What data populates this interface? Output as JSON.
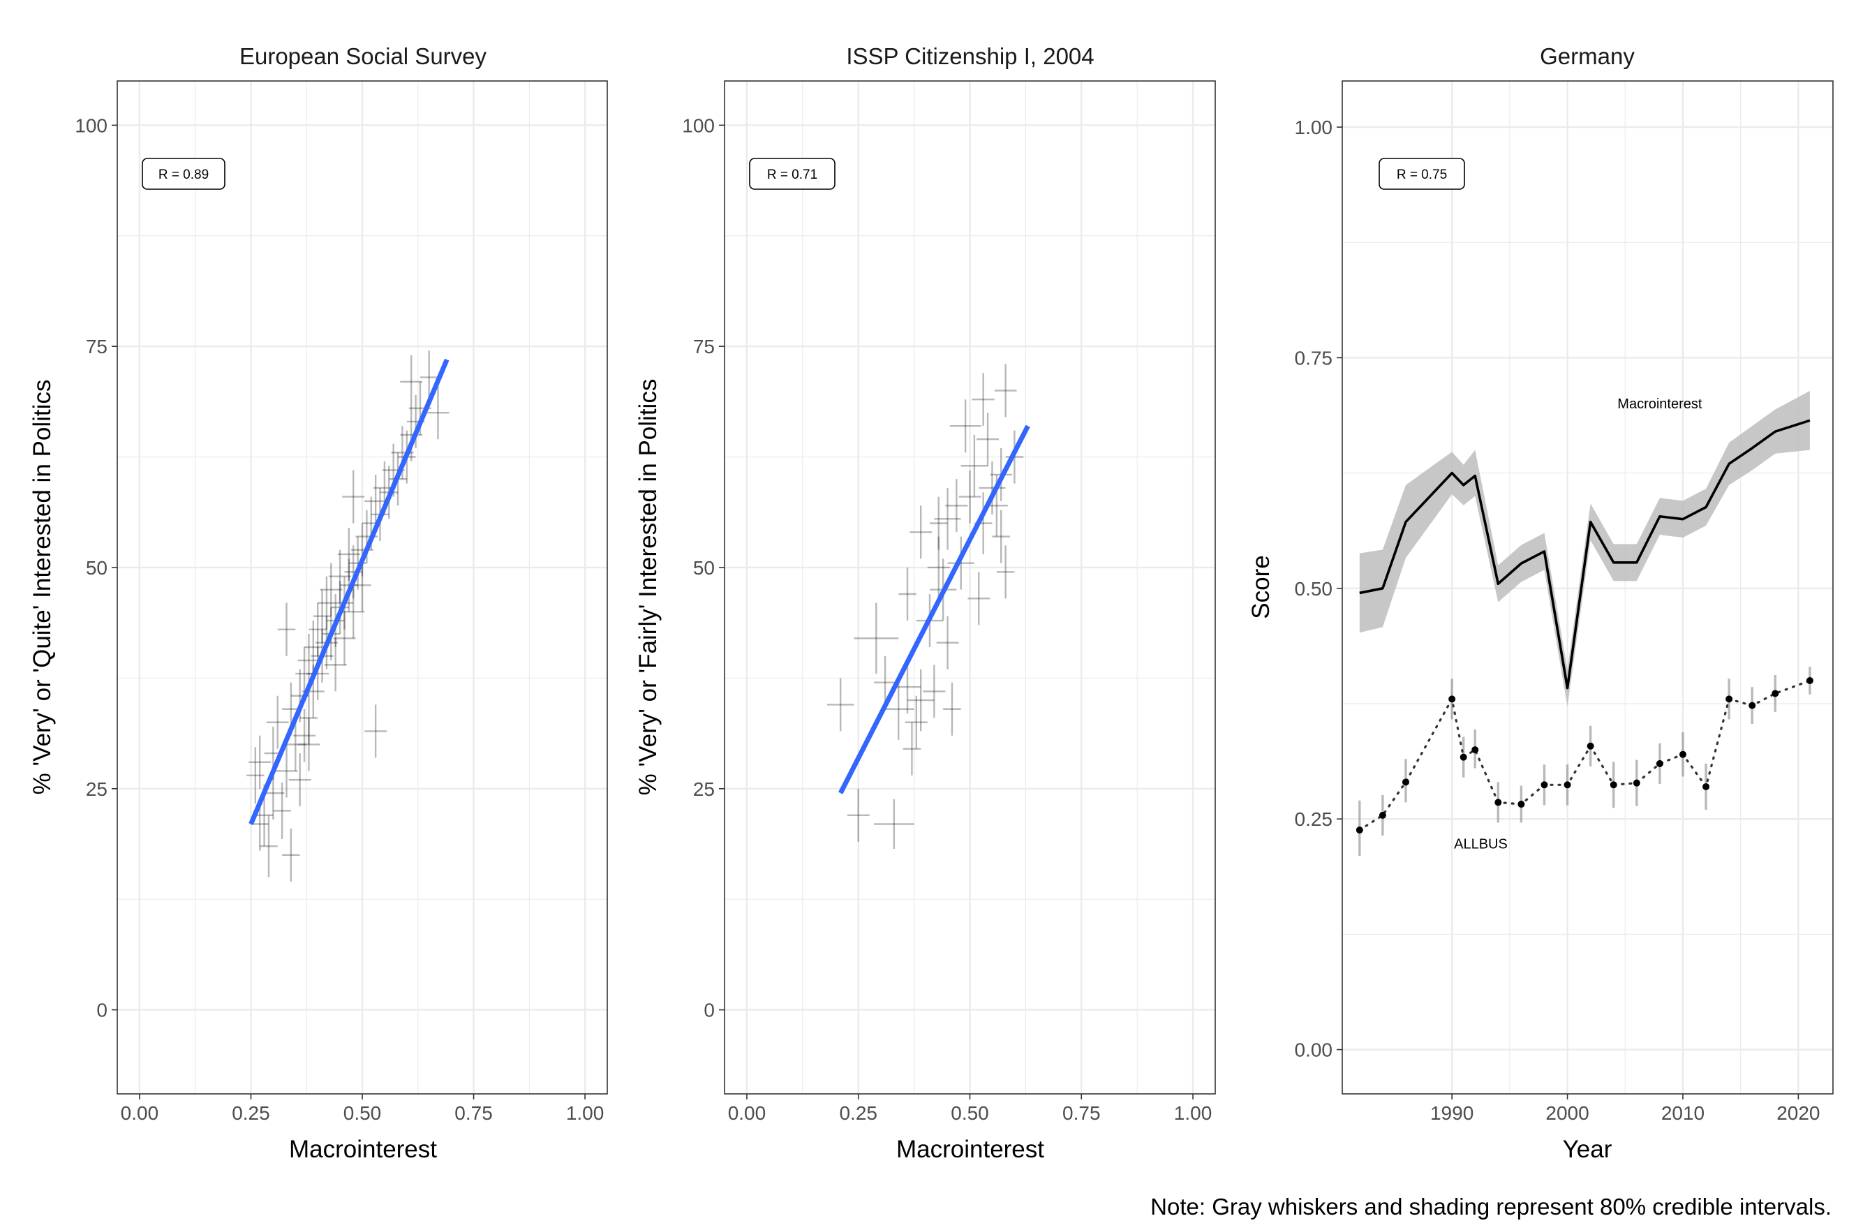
{
  "note": "Note: Gray whiskers and shading represent 80% credible intervals.",
  "colors": {
    "fit_line": "#3366ff",
    "cross": "#000000",
    "band": "#bdbdbd",
    "grid": "#ebebeb",
    "frame": "#333333"
  },
  "chart_data": [
    {
      "type": "scatter",
      "title": "European Social Survey",
      "xlabel": "Macrointerest",
      "ylabel": "% 'Very' or 'Quite' Interested in Politics",
      "xlim": [
        -0.05,
        1.05
      ],
      "ylim": [
        -9.5,
        105
      ],
      "xticks": [
        0.0,
        0.25,
        0.5,
        0.75,
        1.0
      ],
      "xtick_labels": [
        "0.00",
        "0.25",
        "0.50",
        "0.75",
        "1.00"
      ],
      "yticks": [
        0,
        25,
        50,
        75,
        100
      ],
      "ytick_labels": [
        "0",
        "25",
        "50",
        "75",
        "100"
      ],
      "grid": true,
      "r_label": "R = 0.89",
      "fit_line": {
        "x": [
          0.25,
          0.69
        ],
        "y": [
          21,
          73.5
        ]
      },
      "points": [
        [
          0.26,
          26.5,
          0.02,
          3.2
        ],
        [
          0.27,
          28.0,
          0.025,
          3.0
        ],
        [
          0.28,
          22.0,
          0.02,
          3.5
        ],
        [
          0.29,
          18.5,
          0.02,
          3.5
        ],
        [
          0.3,
          24.5,
          0.025,
          3.0
        ],
        [
          0.3,
          29.0,
          0.02,
          3.0
        ],
        [
          0.31,
          32.5,
          0.025,
          3.0
        ],
        [
          0.32,
          22.5,
          0.02,
          3.2
        ],
        [
          0.33,
          27.0,
          0.025,
          3.0
        ],
        [
          0.34,
          17.5,
          0.02,
          3.0
        ],
        [
          0.34,
          34.0,
          0.02,
          3.0
        ],
        [
          0.35,
          30.0,
          0.025,
          3.0
        ],
        [
          0.36,
          35.5,
          0.02,
          3.0
        ],
        [
          0.36,
          26.0,
          0.025,
          3.0
        ],
        [
          0.37,
          38.0,
          0.02,
          3.0
        ],
        [
          0.37,
          31.0,
          0.025,
          3.0
        ],
        [
          0.38,
          33.0,
          0.02,
          3.0
        ],
        [
          0.38,
          39.5,
          0.025,
          3.0
        ],
        [
          0.39,
          41.0,
          0.02,
          3.0
        ],
        [
          0.39,
          36.0,
          0.025,
          3.0
        ],
        [
          0.4,
          43.0,
          0.02,
          3.0
        ],
        [
          0.4,
          38.0,
          0.025,
          3.0
        ],
        [
          0.41,
          44.5,
          0.02,
          3.0
        ],
        [
          0.41,
          40.0,
          0.025,
          3.0
        ],
        [
          0.42,
          46.0,
          0.02,
          3.0
        ],
        [
          0.42,
          41.5,
          0.025,
          3.0
        ],
        [
          0.43,
          42.5,
          0.02,
          3.0
        ],
        [
          0.43,
          47.5,
          0.025,
          3.0
        ],
        [
          0.44,
          44.0,
          0.02,
          3.0
        ],
        [
          0.44,
          39.0,
          0.025,
          3.0
        ],
        [
          0.45,
          45.5,
          0.02,
          3.0
        ],
        [
          0.45,
          49.0,
          0.025,
          3.0
        ],
        [
          0.46,
          46.0,
          0.02,
          3.0
        ],
        [
          0.46,
          42.0,
          0.025,
          3.0
        ],
        [
          0.47,
          48.0,
          0.02,
          3.0
        ],
        [
          0.47,
          51.5,
          0.025,
          3.0
        ],
        [
          0.48,
          49.5,
          0.02,
          3.0
        ],
        [
          0.48,
          45.0,
          0.025,
          3.0
        ],
        [
          0.49,
          50.5,
          0.02,
          3.0
        ],
        [
          0.5,
          52.0,
          0.025,
          3.0
        ],
        [
          0.5,
          48.0,
          0.02,
          3.0
        ],
        [
          0.51,
          53.5,
          0.025,
          3.0
        ],
        [
          0.52,
          55.0,
          0.02,
          3.0
        ],
        [
          0.53,
          57.5,
          0.025,
          3.0
        ],
        [
          0.54,
          56.0,
          0.02,
          3.0
        ],
        [
          0.55,
          59.0,
          0.025,
          3.0
        ],
        [
          0.56,
          58.5,
          0.02,
          3.0
        ],
        [
          0.57,
          61.0,
          0.025,
          3.0
        ],
        [
          0.58,
          60.0,
          0.02,
          3.0
        ],
        [
          0.59,
          63.0,
          0.025,
          3.0
        ],
        [
          0.6,
          62.5,
          0.02,
          3.0
        ],
        [
          0.61,
          65.0,
          0.025,
          3.0
        ],
        [
          0.62,
          66.5,
          0.02,
          3.0
        ],
        [
          0.63,
          68.0,
          0.025,
          3.0
        ],
        [
          0.65,
          71.5,
          0.02,
          3.0
        ],
        [
          0.67,
          67.5,
          0.025,
          3.0
        ],
        [
          0.53,
          31.5,
          0.025,
          3.0
        ],
        [
          0.33,
          43.0,
          0.02,
          3.0
        ],
        [
          0.48,
          58.0,
          0.025,
          3.0
        ],
        [
          0.61,
          71.0,
          0.025,
          3.0
        ],
        [
          0.27,
          21.0,
          0.02,
          3.0
        ],
        [
          0.38,
          30.0,
          0.025,
          3.0
        ]
      ]
    },
    {
      "type": "scatter",
      "title": "ISSP Citizenship I, 2004",
      "xlabel": "Macrointerest",
      "ylabel": "% 'Very' or 'Fairly' Interested in Politics",
      "xlim": [
        -0.05,
        1.05
      ],
      "ylim": [
        -9.5,
        105
      ],
      "xticks": [
        0.0,
        0.25,
        0.5,
        0.75,
        1.0
      ],
      "xtick_labels": [
        "0.00",
        "0.25",
        "0.50",
        "0.75",
        "1.00"
      ],
      "yticks": [
        0,
        25,
        50,
        75,
        100
      ],
      "ytick_labels": [
        "0",
        "25",
        "50",
        "75",
        "100"
      ],
      "grid": true,
      "r_label": "R = 0.71",
      "fit_line": {
        "x": [
          0.21,
          0.63
        ],
        "y": [
          24.5,
          66
        ]
      },
      "points": [
        [
          0.21,
          34.5,
          0.03,
          3.0
        ],
        [
          0.25,
          22.0,
          0.025,
          3.0
        ],
        [
          0.29,
          42.0,
          0.05,
          4.0
        ],
        [
          0.33,
          21.0,
          0.045,
          2.8
        ],
        [
          0.31,
          37.0,
          0.025,
          3.0
        ],
        [
          0.34,
          34.0,
          0.035,
          3.5
        ],
        [
          0.36,
          36.5,
          0.03,
          3.0
        ],
        [
          0.37,
          29.5,
          0.02,
          3.0
        ],
        [
          0.38,
          32.5,
          0.025,
          3.0
        ],
        [
          0.39,
          35.0,
          0.03,
          3.5
        ],
        [
          0.39,
          54.0,
          0.025,
          3.0
        ],
        [
          0.41,
          44.0,
          0.03,
          3.0
        ],
        [
          0.42,
          36.0,
          0.025,
          3.0
        ],
        [
          0.43,
          50.0,
          0.025,
          3.5
        ],
        [
          0.44,
          47.5,
          0.03,
          3.5
        ],
        [
          0.45,
          41.5,
          0.025,
          3.0
        ],
        [
          0.45,
          55.5,
          0.03,
          3.5
        ],
        [
          0.46,
          34.0,
          0.02,
          3.0
        ],
        [
          0.47,
          57.0,
          0.025,
          3.0
        ],
        [
          0.48,
          50.5,
          0.03,
          3.0
        ],
        [
          0.49,
          66.0,
          0.035,
          3.0
        ],
        [
          0.5,
          58.0,
          0.025,
          3.0
        ],
        [
          0.51,
          61.5,
          0.03,
          3.5
        ],
        [
          0.52,
          46.5,
          0.025,
          3.0
        ],
        [
          0.53,
          55.0,
          0.02,
          3.5
        ],
        [
          0.54,
          64.5,
          0.025,
          3.0
        ],
        [
          0.55,
          59.0,
          0.03,
          3.0
        ],
        [
          0.56,
          57.0,
          0.025,
          3.5
        ],
        [
          0.57,
          53.5,
          0.02,
          3.0
        ],
        [
          0.58,
          49.5,
          0.02,
          3.0
        ],
        [
          0.53,
          69.0,
          0.025,
          3.0
        ],
        [
          0.58,
          70.0,
          0.025,
          3.0
        ],
        [
          0.6,
          62.5,
          0.02,
          3.0
        ],
        [
          0.57,
          60.5,
          0.025,
          3.0
        ],
        [
          0.43,
          55.0,
          0.02,
          3.0
        ],
        [
          0.36,
          47.0,
          0.02,
          3.0
        ]
      ]
    },
    {
      "type": "line",
      "title": "Germany",
      "xlabel": "Year",
      "ylabel": "Score",
      "xlim": [
        1980.5,
        2023
      ],
      "ylim": [
        -0.048,
        1.05
      ],
      "xticks": [
        1990,
        2000,
        2010,
        2020
      ],
      "xtick_labels": [
        "1990",
        "2000",
        "2010",
        "2020"
      ],
      "yticks": [
        0,
        0.25,
        0.5,
        0.75,
        1.0
      ],
      "ytick_labels": [
        "0.00",
        "0.25",
        "0.50",
        "0.75",
        "1.00"
      ],
      "grid": true,
      "r_label": "R = 0.75",
      "series": [
        {
          "name": "Macrointerest",
          "x": [
            1982,
            1984,
            1986,
            1990,
            1991,
            1992,
            1994,
            1996,
            1998,
            2000,
            2002,
            2004,
            2006,
            2008,
            2010,
            2012,
            2014,
            2016,
            2018,
            2021
          ],
          "y": [
            0.495,
            0.5,
            0.572,
            0.625,
            0.612,
            0.622,
            0.505,
            0.527,
            0.54,
            0.392,
            0.572,
            0.528,
            0.528,
            0.578,
            0.575,
            0.588,
            0.635,
            0.652,
            0.67,
            0.682
          ],
          "lower": [
            0.452,
            0.458,
            0.533,
            0.602,
            0.59,
            0.6,
            0.485,
            0.507,
            0.52,
            0.372,
            0.552,
            0.508,
            0.508,
            0.558,
            0.555,
            0.568,
            0.612,
            0.628,
            0.646,
            0.65
          ],
          "upper": [
            0.538,
            0.542,
            0.612,
            0.648,
            0.634,
            0.65,
            0.525,
            0.547,
            0.56,
            0.412,
            0.592,
            0.548,
            0.548,
            0.598,
            0.595,
            0.608,
            0.658,
            0.676,
            0.694,
            0.714
          ]
        },
        {
          "name": "ALLBUS",
          "x": [
            1982,
            1984,
            1986,
            1990,
            1991,
            1992,
            1994,
            1996,
            1998,
            2000,
            2002,
            2004,
            2006,
            2008,
            2010,
            2012,
            2014,
            2016,
            2018,
            2021
          ],
          "y": [
            0.238,
            0.254,
            0.29,
            0.38,
            0.317,
            0.325,
            0.268,
            0.266,
            0.287,
            0.287,
            0.329,
            0.287,
            0.289,
            0.31,
            0.32,
            0.285,
            0.38,
            0.373,
            0.386,
            0.4
          ],
          "lower": [
            0.21,
            0.232,
            0.268,
            0.358,
            0.295,
            0.305,
            0.246,
            0.246,
            0.265,
            0.265,
            0.307,
            0.262,
            0.264,
            0.288,
            0.296,
            0.26,
            0.358,
            0.353,
            0.366,
            0.385
          ],
          "upper": [
            0.27,
            0.276,
            0.315,
            0.402,
            0.339,
            0.347,
            0.29,
            0.286,
            0.309,
            0.309,
            0.351,
            0.312,
            0.314,
            0.332,
            0.344,
            0.31,
            0.402,
            0.393,
            0.406,
            0.415
          ]
        }
      ],
      "labels": [
        {
          "text": "Macrointerest",
          "x": 2008,
          "y": 0.695
        },
        {
          "text": "ALLBUS",
          "x": 1992.5,
          "y": 0.218
        }
      ]
    }
  ]
}
